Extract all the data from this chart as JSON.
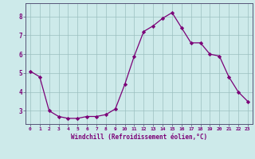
{
  "x": [
    0,
    1,
    2,
    3,
    4,
    5,
    6,
    7,
    8,
    9,
    10,
    11,
    12,
    13,
    14,
    15,
    16,
    17,
    18,
    19,
    20,
    21,
    22,
    23
  ],
  "y": [
    5.1,
    4.8,
    3.0,
    2.7,
    2.6,
    2.6,
    2.7,
    2.7,
    2.8,
    3.1,
    4.4,
    5.9,
    7.2,
    7.5,
    7.9,
    8.2,
    7.4,
    6.6,
    6.6,
    6.0,
    5.9,
    4.8,
    4.0,
    3.5
  ],
  "line_color": "#7B0077",
  "marker": "D",
  "marker_size": 2.2,
  "bg_color": "#cdeaea",
  "grid_color": "#9bbfbf",
  "xlabel": "Windchill (Refroidissement éolien,°C)",
  "xlabel_color": "#7B0077",
  "tick_color": "#7B0077",
  "ylabel_ticks": [
    3,
    4,
    5,
    6,
    7,
    8
  ],
  "xlim": [
    -0.5,
    23.5
  ],
  "ylim": [
    2.3,
    8.7
  ],
  "xtick_labels": [
    "0",
    "1",
    "2",
    "3",
    "4",
    "5",
    "6",
    "7",
    "8",
    "9",
    "10",
    "11",
    "12",
    "13",
    "14",
    "15",
    "16",
    "17",
    "18",
    "19",
    "20",
    "21",
    "22",
    "23"
  ]
}
